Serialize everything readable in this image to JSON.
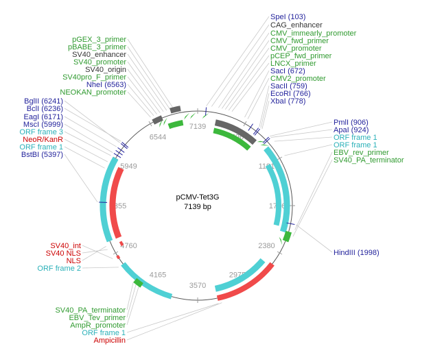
{
  "plasmid": {
    "name": "pCMV-Tet3G",
    "size_label": "7139 bp",
    "length_bp": 7139,
    "ticks": [
      "7139",
      "596",
      "1191",
      "1786",
      "2380",
      "2975",
      "3570",
      "4165",
      "4760",
      "5355",
      "5949",
      "6544"
    ]
  },
  "colors": {
    "enzyme": "#1f1f9a",
    "primer": "#2f9a2f",
    "feature": "#333333",
    "orf": "#2ab0b8",
    "resistance": "#cc0000",
    "leader": "#c8c8c8",
    "backbone": "#555555",
    "orf_fill": "#4fd0d4",
    "resist_fill": "#f04a4a",
    "green_fill": "#3cb83c",
    "gray_fill": "#666666"
  },
  "labels": [
    {
      "text": "SpeI (103)",
      "type": "enzyme"
    },
    {
      "text": "CAG_enhancer",
      "type": "feature"
    },
    {
      "text": "CMV_immearly_promoter",
      "type": "primer"
    },
    {
      "text": "CMV_fwd_primer",
      "type": "primer"
    },
    {
      "text": "CMV_promoter",
      "type": "primer"
    },
    {
      "text": "pCEP_fwd_primer",
      "type": "primer"
    },
    {
      "text": "LNCX_primer",
      "type": "primer"
    },
    {
      "text": "SacI (672)",
      "type": "enzyme"
    },
    {
      "text": "CMV2_promoter",
      "type": "primer"
    },
    {
      "text": "SacII (759)",
      "type": "enzyme"
    },
    {
      "text": "EcoRI (766)",
      "type": "enzyme"
    },
    {
      "text": "XbaI (778)",
      "type": "enzyme"
    },
    {
      "text": "PmlI (906)",
      "type": "enzyme"
    },
    {
      "text": "ApaI (924)",
      "type": "enzyme"
    },
    {
      "text": "ORF frame 1",
      "type": "orf"
    },
    {
      "text": "ORF frame 1",
      "type": "orf"
    },
    {
      "text": "EBV_rev_primer",
      "type": "primer"
    },
    {
      "text": "SV40_PA_terminator",
      "type": "primer"
    },
    {
      "text": "HindIII (1998)",
      "type": "enzyme"
    },
    {
      "text": "pGEX_3_primer",
      "type": "primer"
    },
    {
      "text": "pBABE_3_primer",
      "type": "primer"
    },
    {
      "text": "SV40_enhancer",
      "type": "feature"
    },
    {
      "text": "SV40_promoter",
      "type": "primer"
    },
    {
      "text": "SV40_origin",
      "type": "feature"
    },
    {
      "text": "SV40pro_F_primer",
      "type": "primer"
    },
    {
      "text": "NheI (6563)",
      "type": "enzyme"
    },
    {
      "text": "NEOKAN_promoter",
      "type": "primer"
    },
    {
      "text": "BglII (6241)",
      "type": "enzyme"
    },
    {
      "text": "BclI (6236)",
      "type": "enzyme"
    },
    {
      "text": "EagI (6171)",
      "type": "enzyme"
    },
    {
      "text": "MscI (5999)",
      "type": "enzyme"
    },
    {
      "text": "ORF frame 3",
      "type": "orf"
    },
    {
      "text": "NeoR/KanR",
      "type": "resistance"
    },
    {
      "text": "ORF frame 1",
      "type": "orf"
    },
    {
      "text": "BstBI (5397)",
      "type": "enzyme"
    },
    {
      "text": "SV40_int",
      "type": "resistance"
    },
    {
      "text": "SV40 NLS",
      "type": "resistance"
    },
    {
      "text": "NLS",
      "type": "resistance"
    },
    {
      "text": "ORF frame 2",
      "type": "orf"
    },
    {
      "text": "SV40_PA_terminator",
      "type": "primer"
    },
    {
      "text": "EBV_Tev_primer",
      "type": "primer"
    },
    {
      "text": "AmpR_promoter",
      "type": "primer"
    },
    {
      "text": "ORF frame 1",
      "type": "orf"
    },
    {
      "text": "Ampicillin",
      "type": "resistance"
    }
  ]
}
